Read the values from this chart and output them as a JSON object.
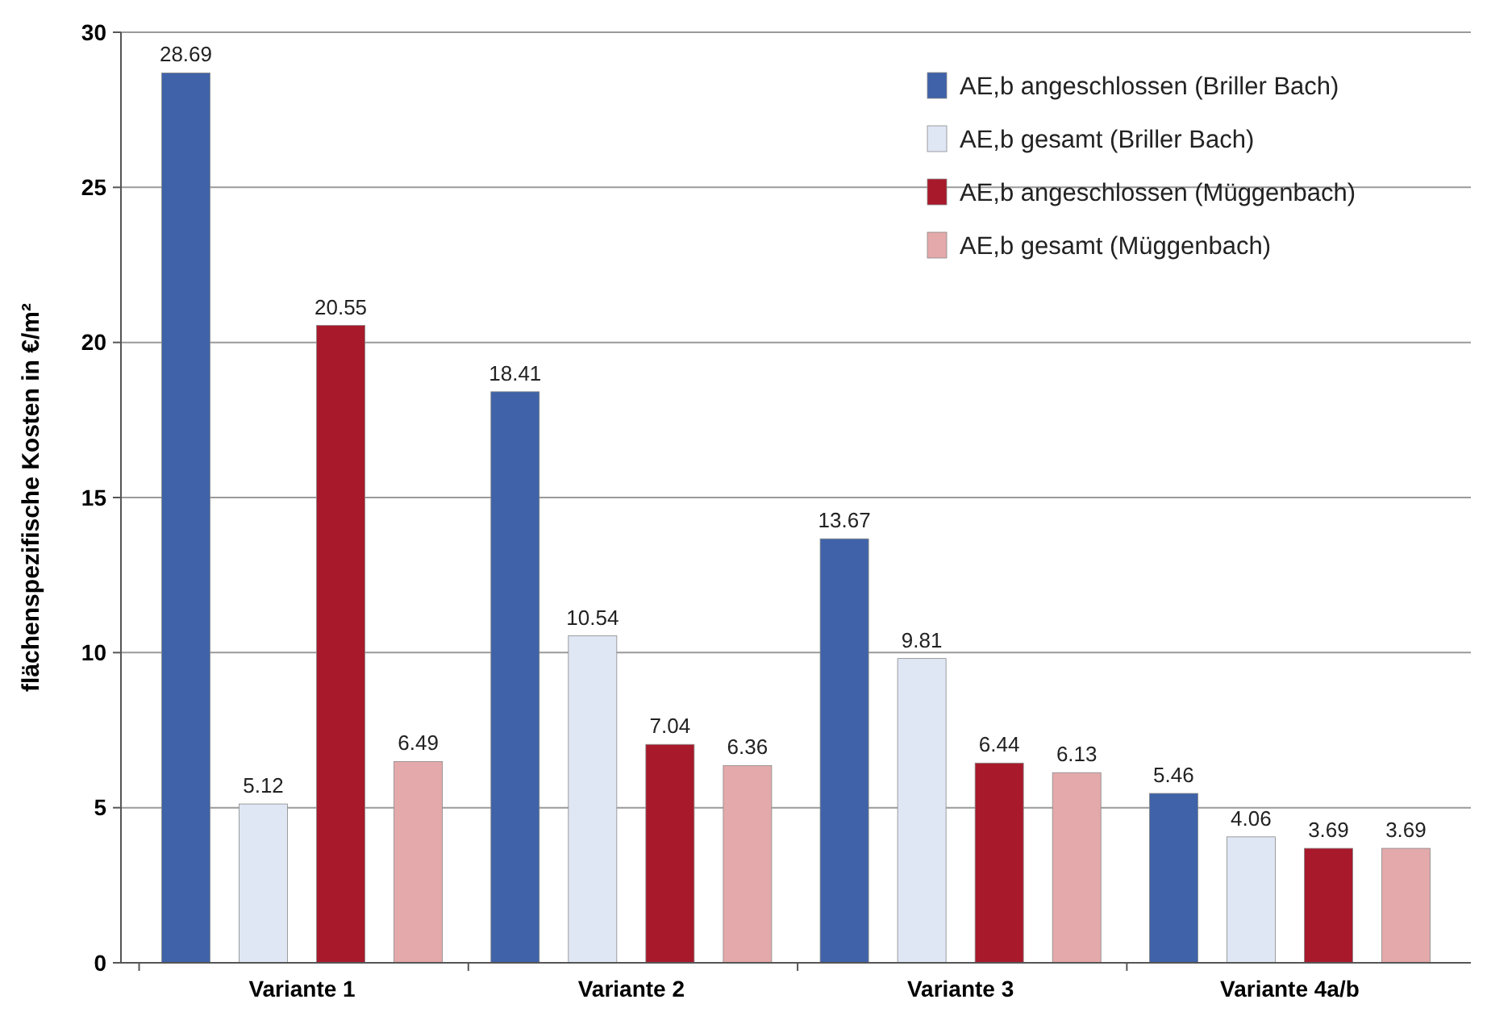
{
  "chart_data": {
    "type": "bar",
    "ylabel": "flächenspezifische Kosten in €/m²",
    "categories": [
      "Variante 1",
      "Variante 2",
      "Variante 3",
      "Variante 4a/b"
    ],
    "series": [
      {
        "name": "AE,b angeschlossen (Briller Bach)",
        "color": "#3f62a8",
        "values": [
          28.69,
          18.41,
          13.67,
          5.46
        ]
      },
      {
        "name": "AE,b gesamt (Briller Bach)",
        "color": "#dfe7f5",
        "values": [
          5.12,
          10.54,
          9.81,
          4.06
        ]
      },
      {
        "name": "AE,b angeschlossen (Müggenbach)",
        "color": "#a8192b",
        "values": [
          20.55,
          7.04,
          6.44,
          3.69
        ]
      },
      {
        "name": "AE,b gesamt (Müggenbach)",
        "color": "#e4a9aa",
        "values": [
          6.49,
          6.36,
          6.13,
          3.69
        ]
      }
    ],
    "ylim": [
      0,
      30
    ],
    "yticks": [
      0,
      5,
      10,
      15,
      20,
      25,
      30
    ],
    "grid": "y",
    "legend": "top right",
    "data_labels": true
  }
}
